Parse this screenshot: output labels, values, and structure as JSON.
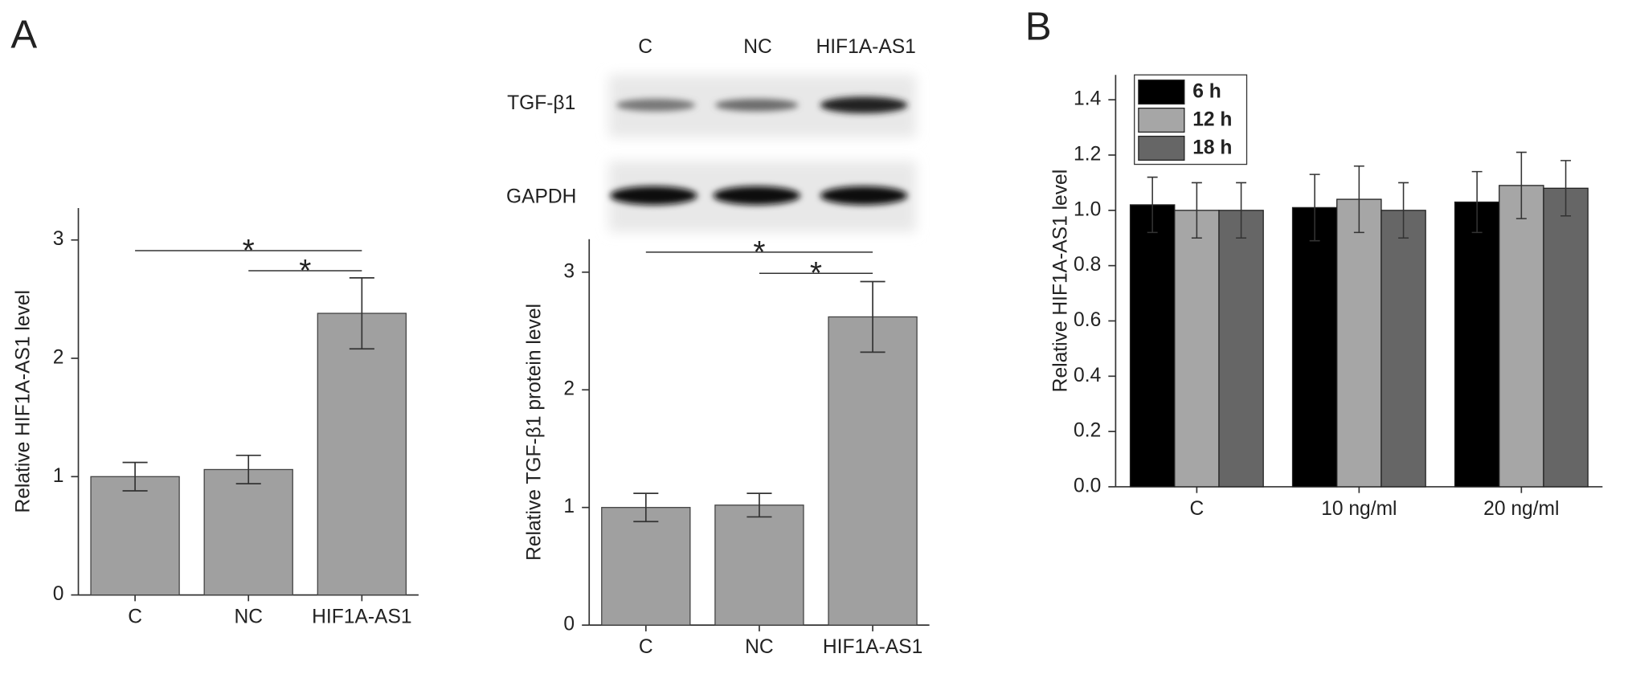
{
  "panel_labels": [
    "A",
    "B"
  ],
  "blot": {
    "lanes": [
      "C",
      "NC",
      "HIF1A-AS1"
    ],
    "rows": [
      "TGF-β1",
      "GAPDH"
    ]
  },
  "chart_data": [
    {
      "type": "bar",
      "y_label": "Relative HIF1A-AS1 level",
      "categories": [
        "C",
        "NC",
        "HIF1A-AS1"
      ],
      "values": [
        1.0,
        1.06,
        2.38
      ],
      "errors": [
        0.12,
        0.12,
        0.3
      ],
      "color": "#a0a0a0",
      "ylim": [
        0,
        3.27
      ],
      "yticks": [
        0,
        1,
        2,
        3
      ],
      "significance": [
        {
          "y": 2.91,
          "label": "*"
        },
        {
          "y": 2.74,
          "label": "*"
        }
      ]
    },
    {
      "type": "bar",
      "y_label": "Relative TGF-β1 protein level",
      "categories": [
        "C",
        "NC",
        "HIF1A-AS1"
      ],
      "values": [
        1.0,
        1.02,
        2.62
      ],
      "errors": [
        0.12,
        0.1,
        0.3
      ],
      "color": "#a0a0a0",
      "ylim": [
        0,
        3.28
      ],
      "yticks": [
        0,
        1,
        2,
        3
      ],
      "significance": [
        {
          "y": 3.17,
          "label": "*"
        },
        {
          "y": 2.99,
          "label": "*"
        }
      ]
    },
    {
      "type": "bar",
      "y_label": "Relative HIF1A-AS1 level",
      "categories": [
        "C",
        "10 ng/ml",
        "20 ng/ml"
      ],
      "series": [
        {
          "name": "6 h",
          "color": "#000000",
          "values": [
            1.02,
            1.01,
            1.03
          ],
          "errors": [
            0.1,
            0.12,
            0.11
          ]
        },
        {
          "name": "12 h",
          "color": "#a6a6a6",
          "values": [
            1.0,
            1.04,
            1.09
          ],
          "errors": [
            0.1,
            0.12,
            0.12
          ]
        },
        {
          "name": "18 h",
          "color": "#666666",
          "values": [
            1.0,
            1.0,
            1.08
          ],
          "errors": [
            0.1,
            0.1,
            0.1
          ]
        }
      ],
      "ylim": [
        0,
        1.49
      ],
      "yticks": [
        {
          "value": 0,
          "label": "0.0"
        },
        0.2,
        0.4,
        0.6,
        0.8,
        {
          "value": 1,
          "label": "1.0"
        },
        1.2,
        1.4
      ],
      "legend": "top-left"
    }
  ]
}
